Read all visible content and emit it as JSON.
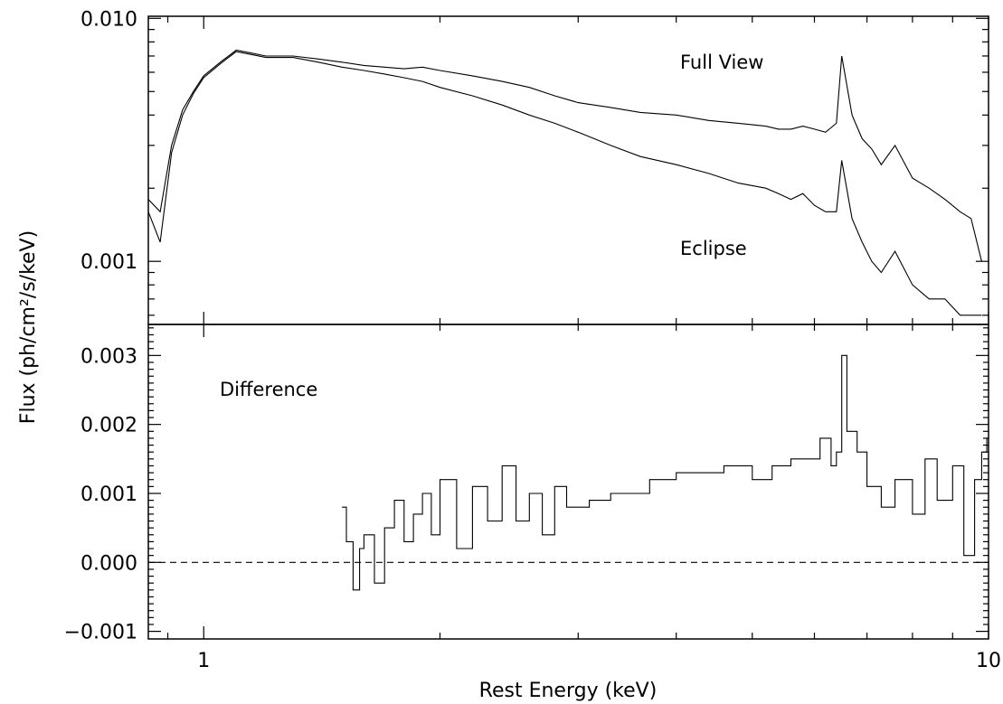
{
  "chart_data": [
    {
      "type": "line",
      "panel": "top",
      "xscale": "log",
      "yscale": "log",
      "xlim": [
        0.85,
        10.0
      ],
      "ylim": [
        0.00055,
        0.0102
      ],
      "ylabel": "Flux (ph/cm²/s/keV)",
      "yticks": [
        {
          "value": 0.001,
          "label": "0.001"
        },
        {
          "value": 0.01,
          "label": "0.010"
        }
      ],
      "annotations": [
        {
          "text": "Full View",
          "x": 4.9,
          "y": 0.0063
        },
        {
          "text": "Eclipse",
          "x": 4.9,
          "y": 0.00105
        }
      ],
      "series": [
        {
          "name": "Full View",
          "x": [
            0.85,
            0.88,
            0.91,
            0.94,
            0.97,
            1.0,
            1.05,
            1.1,
            1.15,
            1.2,
            1.3,
            1.4,
            1.5,
            1.6,
            1.7,
            1.8,
            1.9,
            2.0,
            2.2,
            2.4,
            2.6,
            2.8,
            3.0,
            3.3,
            3.6,
            4.0,
            4.4,
            4.8,
            5.2,
            5.4,
            5.6,
            5.8,
            6.0,
            6.2,
            6.4,
            6.5,
            6.7,
            6.9,
            7.1,
            7.3,
            7.6,
            8.0,
            8.4,
            8.8,
            9.2,
            9.5,
            9.8
          ],
          "y": [
            0.0018,
            0.0016,
            0.003,
            0.0042,
            0.005,
            0.0058,
            0.0066,
            0.0074,
            0.0072,
            0.007,
            0.007,
            0.0068,
            0.0066,
            0.0064,
            0.0063,
            0.0062,
            0.0063,
            0.0061,
            0.0058,
            0.0055,
            0.0052,
            0.0048,
            0.0045,
            0.0043,
            0.0041,
            0.004,
            0.0038,
            0.0037,
            0.0036,
            0.0035,
            0.0035,
            0.0036,
            0.0035,
            0.0034,
            0.0037,
            0.007,
            0.004,
            0.0032,
            0.0029,
            0.0025,
            0.003,
            0.0022,
            0.002,
            0.0018,
            0.0016,
            0.0015,
            0.001
          ]
        },
        {
          "name": "Eclipse",
          "x": [
            0.85,
            0.88,
            0.91,
            0.94,
            0.97,
            1.0,
            1.05,
            1.1,
            1.15,
            1.2,
            1.3,
            1.4,
            1.5,
            1.6,
            1.7,
            1.8,
            1.9,
            2.0,
            2.2,
            2.4,
            2.6,
            2.8,
            3.0,
            3.3,
            3.6,
            4.0,
            4.4,
            4.8,
            5.2,
            5.4,
            5.6,
            5.8,
            6.0,
            6.2,
            6.4,
            6.5,
            6.7,
            6.9,
            7.1,
            7.3,
            7.6,
            8.0,
            8.4,
            8.8,
            9.2,
            9.5,
            9.8
          ],
          "y": [
            0.0016,
            0.0012,
            0.0028,
            0.004,
            0.0049,
            0.0057,
            0.0065,
            0.0073,
            0.0071,
            0.0069,
            0.0069,
            0.0066,
            0.0063,
            0.0061,
            0.0059,
            0.0057,
            0.0055,
            0.0052,
            0.0048,
            0.0044,
            0.004,
            0.0037,
            0.0034,
            0.003,
            0.0027,
            0.0025,
            0.0023,
            0.0021,
            0.002,
            0.0019,
            0.0018,
            0.0019,
            0.0017,
            0.0016,
            0.0016,
            0.0026,
            0.0015,
            0.0012,
            0.001,
            0.0009,
            0.0011,
            0.0008,
            0.0007,
            0.0007,
            0.0006,
            0.0006,
            0.0006
          ]
        }
      ]
    },
    {
      "type": "line",
      "panel": "bottom",
      "xscale": "log",
      "xlim": [
        0.85,
        10.0
      ],
      "ylim": [
        -0.00111,
        0.00345
      ],
      "xlabel": "Rest Energy (keV)",
      "xticks": [
        {
          "value": 1,
          "label": "1"
        },
        {
          "value": 10,
          "label": "10"
        }
      ],
      "yticks": [
        {
          "value": -0.001,
          "label": "−0.001"
        },
        {
          "value": 0.0,
          "label": "0.000"
        },
        {
          "value": 0.001,
          "label": "0.001"
        },
        {
          "value": 0.002,
          "label": "0.002"
        },
        {
          "value": 0.003,
          "label": "0.003"
        }
      ],
      "reference_line": {
        "y": 0.0,
        "style": "dashed"
      },
      "annotations": [
        {
          "text": "Difference",
          "x": 1.0,
          "y": 0.0026
        }
      ],
      "series": [
        {
          "name": "Difference",
          "x": [
            1.5,
            1.52,
            1.55,
            1.58,
            1.6,
            1.65,
            1.7,
            1.75,
            1.8,
            1.85,
            1.9,
            1.95,
            2.0,
            2.1,
            2.2,
            2.3,
            2.4,
            2.5,
            2.6,
            2.7,
            2.8,
            2.9,
            3.0,
            3.1,
            3.3,
            3.5,
            3.7,
            4.0,
            4.3,
            4.6,
            5.0,
            5.3,
            5.6,
            5.9,
            6.1,
            6.3,
            6.4,
            6.5,
            6.6,
            6.8,
            7.0,
            7.3,
            7.6,
            8.0,
            8.3,
            8.6,
            9.0,
            9.3,
            9.6,
            9.8,
            9.95
          ],
          "y": [
            0.0008,
            0.0003,
            -0.0004,
            0.0002,
            0.0004,
            -0.0003,
            0.0005,
            0.0009,
            0.0003,
            0.0007,
            0.001,
            0.0004,
            0.0012,
            0.0002,
            0.0011,
            0.0006,
            0.0014,
            0.0006,
            0.001,
            0.0004,
            0.0011,
            0.0008,
            0.0008,
            0.0009,
            0.001,
            0.001,
            0.0012,
            0.0013,
            0.0013,
            0.0014,
            0.0012,
            0.0014,
            0.0015,
            0.0015,
            0.0018,
            0.0014,
            0.0016,
            0.003,
            0.0019,
            0.0016,
            0.0011,
            0.0008,
            0.0012,
            0.0007,
            0.0015,
            0.0009,
            0.0014,
            0.0001,
            0.0012,
            0.0016,
            0.0018
          ]
        }
      ]
    }
  ]
}
